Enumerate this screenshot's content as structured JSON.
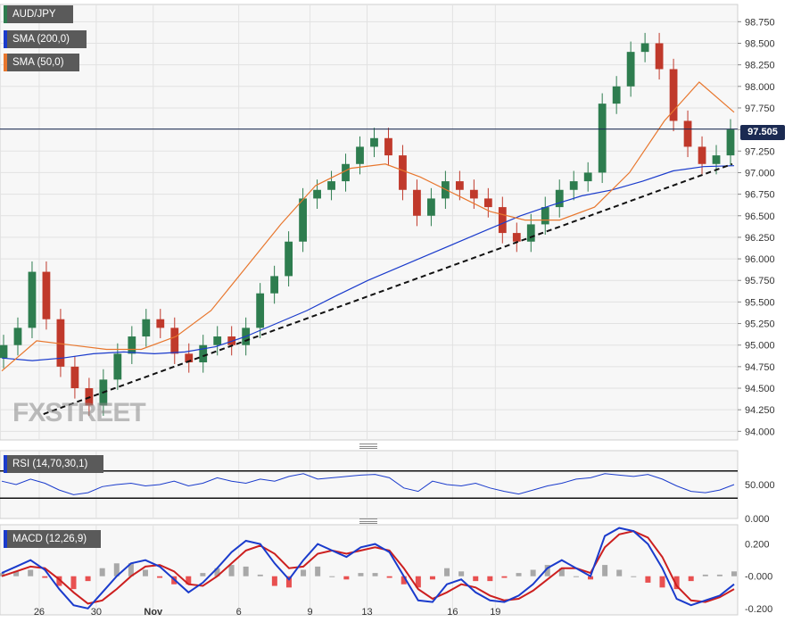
{
  "legends": {
    "symbol": "AUD/JPY",
    "sma200": "SMA (200,0)",
    "sma50": "SMA (50,0)",
    "rsi": "RSI (14,70,30,1)",
    "macd": "MACD (12,26,9)"
  },
  "watermark": "FXSTREET",
  "price_badge": "97.505",
  "colors": {
    "candle_up": "#2e7d4f",
    "candle_down": "#c0392b",
    "sma200": "#1a3bcc",
    "sma50": "#e8772e",
    "rsi_line": "#1a3bcc",
    "macd_line": "#1a3bcc",
    "signal_line": "#cc1f1f",
    "hist_pos": "#a8a8a8",
    "hist_neg": "#e85050",
    "badge": "#1b2a52",
    "legend_bg": "#5a5a5a"
  },
  "chart_data": [
    {
      "type": "candlestick",
      "symbol": "AUD/JPY",
      "ylim": [
        93.9,
        98.95
      ],
      "y_ticks": [
        "98.750",
        "98.500",
        "98.250",
        "98.000",
        "97.750",
        "97.500",
        "97.250",
        "97.000",
        "96.750",
        "96.500",
        "96.250",
        "96.000",
        "95.750",
        "95.500",
        "95.250",
        "95.000",
        "94.750",
        "94.500",
        "94.250",
        "94.000"
      ],
      "x_ticks": [
        "26",
        "30",
        "Nov",
        "6",
        "9",
        "13",
        "16",
        "19"
      ],
      "x_tick_positions": [
        2.5,
        6.5,
        10.5,
        16.5,
        21.5,
        25.5,
        31.5,
        34.5
      ],
      "close": [
        95.0,
        95.2,
        95.85,
        95.3,
        94.75,
        94.5,
        94.3,
        94.6,
        94.9,
        95.1,
        95.3,
        95.2,
        94.9,
        94.8,
        95.0,
        95.1,
        95.0,
        95.2,
        95.6,
        95.8,
        96.2,
        96.7,
        96.8,
        96.9,
        97.1,
        97.3,
        97.4,
        97.2,
        96.8,
        96.5,
        96.7,
        96.9,
        96.8,
        96.7,
        96.6,
        96.3,
        96.2,
        96.4,
        96.6,
        96.8,
        96.9,
        97.0,
        97.8,
        98.0,
        98.4,
        98.5,
        98.2,
        97.6,
        97.3,
        97.1,
        97.2,
        97.5
      ],
      "price_line": 97.505,
      "sma200": [
        94.85,
        94.82,
        94.85,
        94.9,
        94.92,
        94.9,
        94.92,
        94.98,
        95.1,
        95.25,
        95.4,
        95.58,
        95.75,
        95.9,
        96.05,
        96.2,
        96.35,
        96.5,
        96.62,
        96.73,
        96.8,
        96.9,
        97.02,
        97.07,
        97.08
      ],
      "sma50": [
        94.7,
        95.05,
        95.0,
        94.95,
        94.95,
        95.1,
        95.4,
        95.9,
        96.4,
        96.85,
        97.05,
        97.1,
        96.95,
        96.75,
        96.55,
        96.45,
        96.45,
        96.6,
        97.0,
        97.6,
        98.05,
        97.7
      ],
      "trendline": {
        "from": 94.2,
        "to": 97.1
      }
    },
    {
      "type": "line",
      "name": "RSI (14,70,30,1)",
      "ylim": [
        0,
        100
      ],
      "y_ticks": [
        "50.000",
        "0.000"
      ],
      "levels": [
        70,
        30
      ],
      "values": [
        55,
        50,
        58,
        52,
        42,
        35,
        38,
        47,
        50,
        52,
        48,
        50,
        55,
        48,
        52,
        60,
        55,
        52,
        58,
        55,
        62,
        66,
        58,
        60,
        62,
        64,
        65,
        60,
        45,
        40,
        55,
        50,
        48,
        52,
        45,
        40,
        36,
        42,
        48,
        52,
        58,
        60,
        66,
        64,
        62,
        65,
        58,
        48,
        40,
        38,
        42,
        50
      ]
    },
    {
      "type": "line",
      "name": "MACD (12,26,9)",
      "ylim": [
        -0.24,
        0.32
      ],
      "y_ticks": [
        "0.200",
        "-0.000",
        "-0.200"
      ],
      "macd": [
        0.02,
        0.06,
        0.1,
        0.04,
        -0.08,
        -0.18,
        -0.2,
        -0.1,
        0.0,
        0.08,
        0.1,
        0.06,
        -0.02,
        -0.1,
        -0.04,
        0.05,
        0.15,
        0.22,
        0.2,
        0.08,
        -0.02,
        0.1,
        0.2,
        0.16,
        0.12,
        0.18,
        0.2,
        0.15,
        0.0,
        -0.15,
        -0.16,
        -0.05,
        -0.02,
        -0.1,
        -0.15,
        -0.16,
        -0.12,
        -0.05,
        0.05,
        0.1,
        0.05,
        0.0,
        0.25,
        0.3,
        0.28,
        0.2,
        0.05,
        -0.14,
        -0.18,
        -0.15,
        -0.12,
        -0.05
      ],
      "signal": [
        0.0,
        0.03,
        0.06,
        0.05,
        -0.02,
        -0.1,
        -0.17,
        -0.15,
        -0.08,
        0.0,
        0.06,
        0.07,
        0.03,
        -0.05,
        -0.06,
        0.0,
        0.08,
        0.16,
        0.19,
        0.14,
        0.05,
        0.06,
        0.14,
        0.16,
        0.14,
        0.16,
        0.18,
        0.16,
        0.05,
        -0.08,
        -0.14,
        -0.1,
        -0.05,
        -0.07,
        -0.12,
        -0.15,
        -0.14,
        -0.09,
        -0.02,
        0.05,
        0.05,
        0.02,
        0.18,
        0.26,
        0.28,
        0.24,
        0.12,
        -0.06,
        -0.15,
        -0.16,
        -0.13,
        -0.08
      ]
    }
  ]
}
